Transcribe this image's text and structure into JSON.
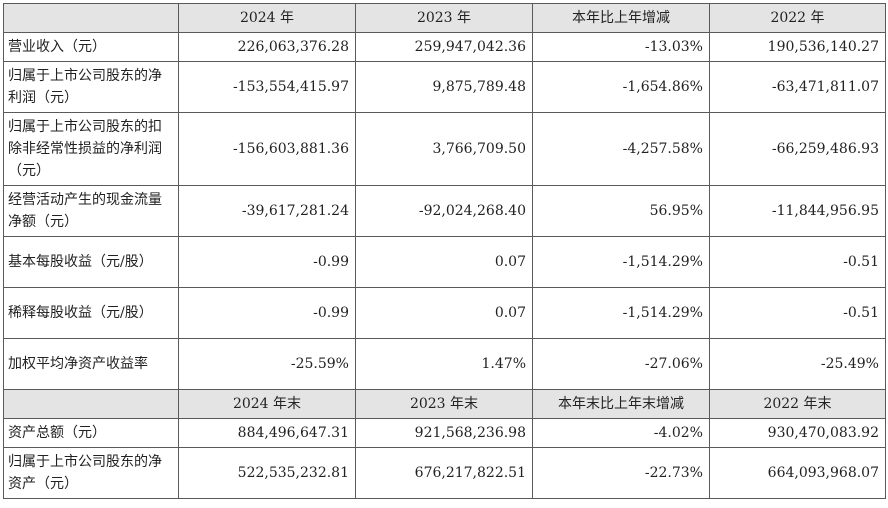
{
  "header_period": [
    "2024 年",
    "2023 年",
    "本年比上年增减",
    "2022 年"
  ],
  "header_end": [
    "2024 年末",
    "2023 年末",
    "本年末比上年末增减",
    "2022 年末"
  ],
  "rows_period": [
    {
      "label": "营业收入（元）",
      "values": [
        "226,063,376.28",
        "259,947,042.36",
        "-13.03%",
        "190,536,140.27"
      ]
    },
    {
      "label": "归属于上市公司股东的净利润（元）",
      "values": [
        "-153,554,415.97",
        "9,875,789.48",
        "-1,654.86%",
        "-63,471,811.07"
      ]
    },
    {
      "label": "归属于上市公司股东的扣除非经常性损益的净利润（元）",
      "values": [
        "-156,603,881.36",
        "3,766,709.50",
        "-4,257.58%",
        "-66,259,486.93"
      ]
    },
    {
      "label": "经营活动产生的现金流量净额（元）",
      "values": [
        "-39,617,281.24",
        "-92,024,268.40",
        "56.95%",
        "-11,844,956.95"
      ]
    },
    {
      "label": "基本每股收益（元/股）",
      "values": [
        "-0.99",
        "0.07",
        "-1,514.29%",
        "-0.51"
      ]
    },
    {
      "label": "稀释每股收益（元/股）",
      "values": [
        "-0.99",
        "0.07",
        "-1,514.29%",
        "-0.51"
      ]
    },
    {
      "label": "加权平均净资产收益率",
      "values": [
        "-25.59%",
        "1.47%",
        "-27.06%",
        "-25.49%"
      ]
    }
  ],
  "rows_end": [
    {
      "label": "资产总额（元）",
      "values": [
        "884,496,647.31",
        "921,568,236.98",
        "-4.02%",
        "930,470,083.92"
      ]
    },
    {
      "label": "归属于上市公司股东的净资产（元）",
      "values": [
        "522,535,232.81",
        "676,217,822.51",
        "-22.73%",
        "664,093,968.07"
      ]
    }
  ]
}
